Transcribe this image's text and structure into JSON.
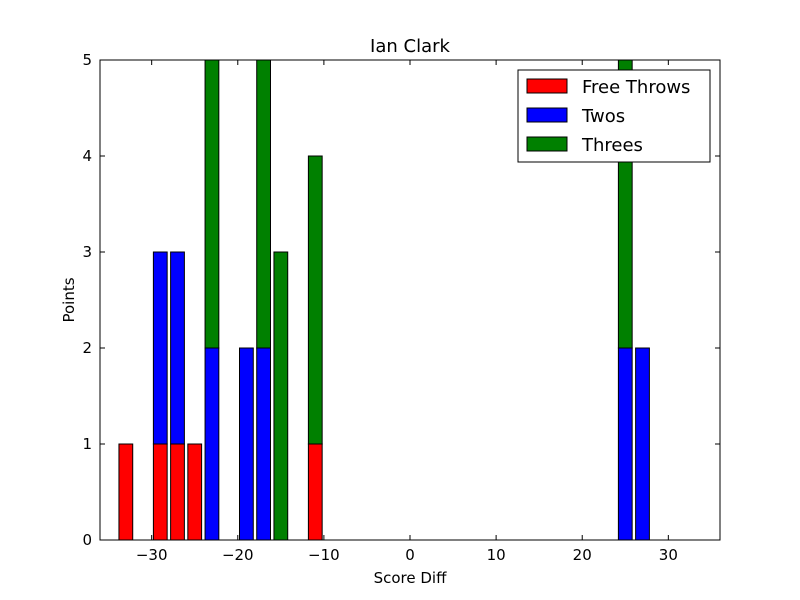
{
  "chart_data": {
    "type": "bar",
    "stacked": true,
    "title": "Ian Clark",
    "xlabel": "Score Diff",
    "ylabel": "Points",
    "xlim": [
      -36,
      36
    ],
    "ylim": [
      0,
      5
    ],
    "xticks": [
      -30,
      -20,
      -10,
      0,
      10,
      20,
      30
    ],
    "xtick_labels": [
      "−30",
      "−20",
      "−10",
      "0",
      "10",
      "20",
      "30"
    ],
    "yticks": [
      0,
      1,
      2,
      3,
      4,
      5
    ],
    "ytick_labels": [
      "0",
      "1",
      "2",
      "3",
      "4",
      "5"
    ],
    "bar_width": 1.6,
    "x": [
      -35,
      -33,
      -31,
      -29,
      -27,
      -25,
      -23,
      -21,
      -19,
      -17,
      -15,
      -13,
      -11,
      -9,
      -7,
      -5,
      -3,
      -1,
      1,
      3,
      5,
      7,
      9,
      11,
      13,
      15,
      17,
      19,
      21,
      23,
      25,
      27,
      29,
      31,
      33,
      35
    ],
    "series": [
      {
        "name": "Free Throws",
        "color": "#ff0000",
        "values": [
          0,
          1,
          0,
          1,
          1,
          1,
          0,
          0,
          0,
          0,
          0,
          0,
          1,
          0,
          0,
          0,
          0,
          0,
          0,
          0,
          0,
          0,
          0,
          0,
          0,
          0,
          0,
          0,
          0,
          0,
          0,
          0,
          0,
          0,
          0,
          0
        ]
      },
      {
        "name": "Twos",
        "color": "#0000ff",
        "values": [
          0,
          0,
          0,
          2,
          2,
          0,
          2,
          0,
          2,
          2,
          0,
          0,
          0,
          0,
          0,
          0,
          0,
          0,
          0,
          0,
          0,
          0,
          0,
          0,
          0,
          0,
          0,
          0,
          0,
          0,
          2,
          2,
          0,
          0,
          0,
          0
        ]
      },
      {
        "name": "Threes",
        "color": "#008000",
        "values": [
          0,
          0,
          0,
          0,
          0,
          0,
          3,
          0,
          0,
          3,
          3,
          0,
          3,
          0,
          0,
          0,
          0,
          0,
          0,
          0,
          0,
          0,
          0,
          0,
          0,
          0,
          0,
          0,
          0,
          0,
          3,
          0,
          0,
          0,
          0,
          0
        ]
      }
    ],
    "legend_position": "top-right",
    "grid": false
  }
}
